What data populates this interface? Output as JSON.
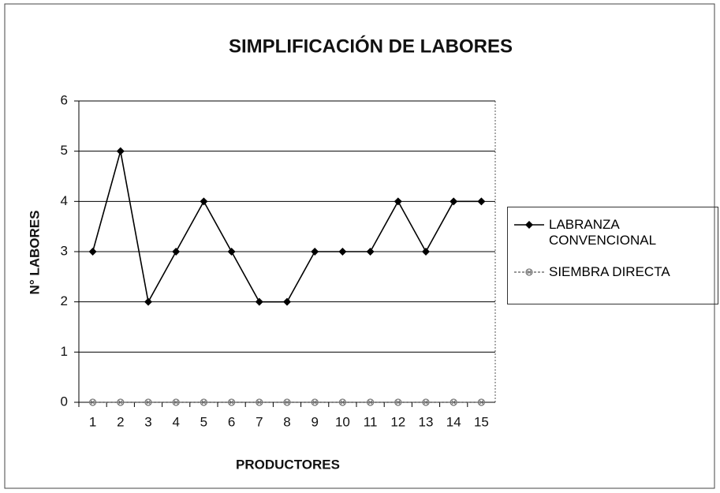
{
  "chart_data": {
    "type": "line",
    "title": "SIMPLIFICACIÓN DE LABORES",
    "x_label": "PRODUCTORES",
    "y_label": "N° LABORES",
    "categories": [
      "1",
      "2",
      "3",
      "4",
      "5",
      "6",
      "7",
      "8",
      "9",
      "10",
      "11",
      "12",
      "13",
      "14",
      "15"
    ],
    "series": [
      {
        "name": "LABRANZA CONVENCIONAL",
        "color": "#000000",
        "marker": "diamond",
        "values": [
          3,
          5,
          2,
          3,
          4,
          3,
          2,
          2,
          3,
          3,
          3,
          4,
          3,
          4,
          4
        ]
      },
      {
        "name": "SIEMBRA DIRECTA",
        "color": "#777777",
        "marker": "x",
        "values": [
          0,
          0,
          0,
          0,
          0,
          0,
          0,
          0,
          0,
          0,
          0,
          0,
          0,
          0,
          0
        ]
      }
    ],
    "ylim": [
      0,
      6
    ],
    "yticks": [
      0,
      1,
      2,
      3,
      4,
      5,
      6
    ],
    "grid": true,
    "legend": "right"
  }
}
